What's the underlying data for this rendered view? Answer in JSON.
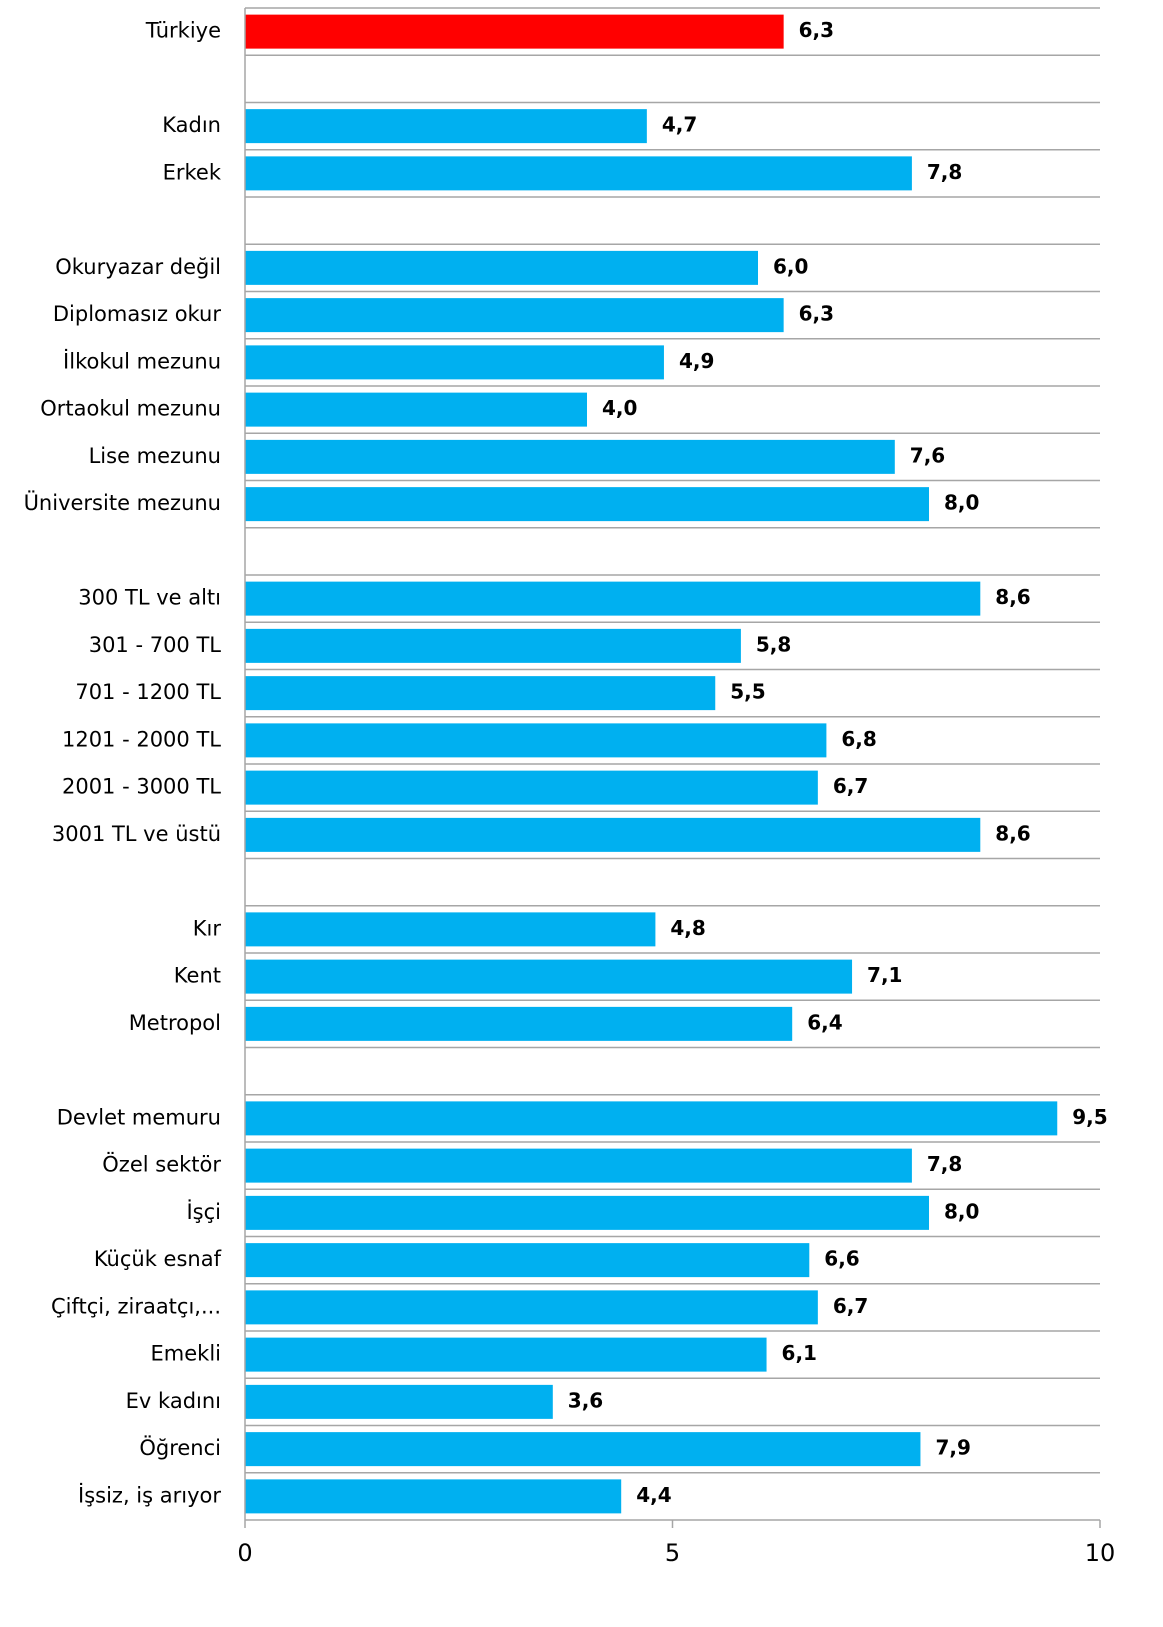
{
  "chart_data": {
    "type": "hbar",
    "categories": [
      "Türkiye",
      null,
      "Kadın",
      "Erkek",
      null,
      "Okuryazar değil",
      "Diplomasız okur",
      "İlkokul mezunu",
      "Ortaokul mezunu",
      "Lise mezunu",
      "Üniversite mezunu",
      null,
      "300 TL ve altı",
      "301 - 700 TL",
      "701 - 1200 TL",
      "1201 - 2000 TL",
      "2001 - 3000 TL",
      "3001 TL ve üstü",
      null,
      "Kır",
      "Kent",
      "Metropol",
      null,
      "Devlet memuru",
      "Özel sektör",
      "İşçi",
      "Küçük esnaf",
      "Çiftçi, ziraatçı,...",
      "Emekli",
      "Ev kadını",
      "Öğrenci",
      "İşsiz, iş arıyor"
    ],
    "values": [
      6.3,
      null,
      4.7,
      7.8,
      null,
      6.0,
      6.3,
      4.9,
      4.0,
      7.6,
      8.0,
      null,
      8.6,
      5.8,
      5.5,
      6.8,
      6.7,
      8.6,
      null,
      4.8,
      7.1,
      6.4,
      null,
      9.5,
      7.8,
      8.0,
      6.6,
      6.7,
      6.1,
      3.6,
      7.9,
      4.4
    ],
    "value_labels": [
      "6,3",
      null,
      "4,7",
      "7,8",
      null,
      "6,0",
      "6,3",
      "4,9",
      "4,0",
      "7,6",
      "8,0",
      null,
      "8,6",
      "5,8",
      "5,5",
      "6,8",
      "6,7",
      "8,6",
      null,
      "4,8",
      "7,1",
      "6,4",
      null,
      "9,5",
      "7,8",
      "8,0",
      "6,6",
      "6,7",
      "6,1",
      "3,6",
      "7,9",
      "4,4"
    ],
    "colors": [
      "#ff0000",
      null,
      "#00b0f0",
      "#00b0f0",
      null,
      "#00b0f0",
      "#00b0f0",
      "#00b0f0",
      "#00b0f0",
      "#00b0f0",
      "#00b0f0",
      null,
      "#00b0f0",
      "#00b0f0",
      "#00b0f0",
      "#00b0f0",
      "#00b0f0",
      "#00b0f0",
      null,
      "#00b0f0",
      "#00b0f0",
      "#00b0f0",
      null,
      "#00b0f0",
      "#00b0f0",
      "#00b0f0",
      "#00b0f0",
      "#00b0f0",
      "#00b0f0",
      "#00b0f0",
      "#00b0f0",
      "#00b0f0"
    ],
    "xlim": [
      0,
      10
    ],
    "xticks": [
      0,
      5,
      10
    ]
  }
}
